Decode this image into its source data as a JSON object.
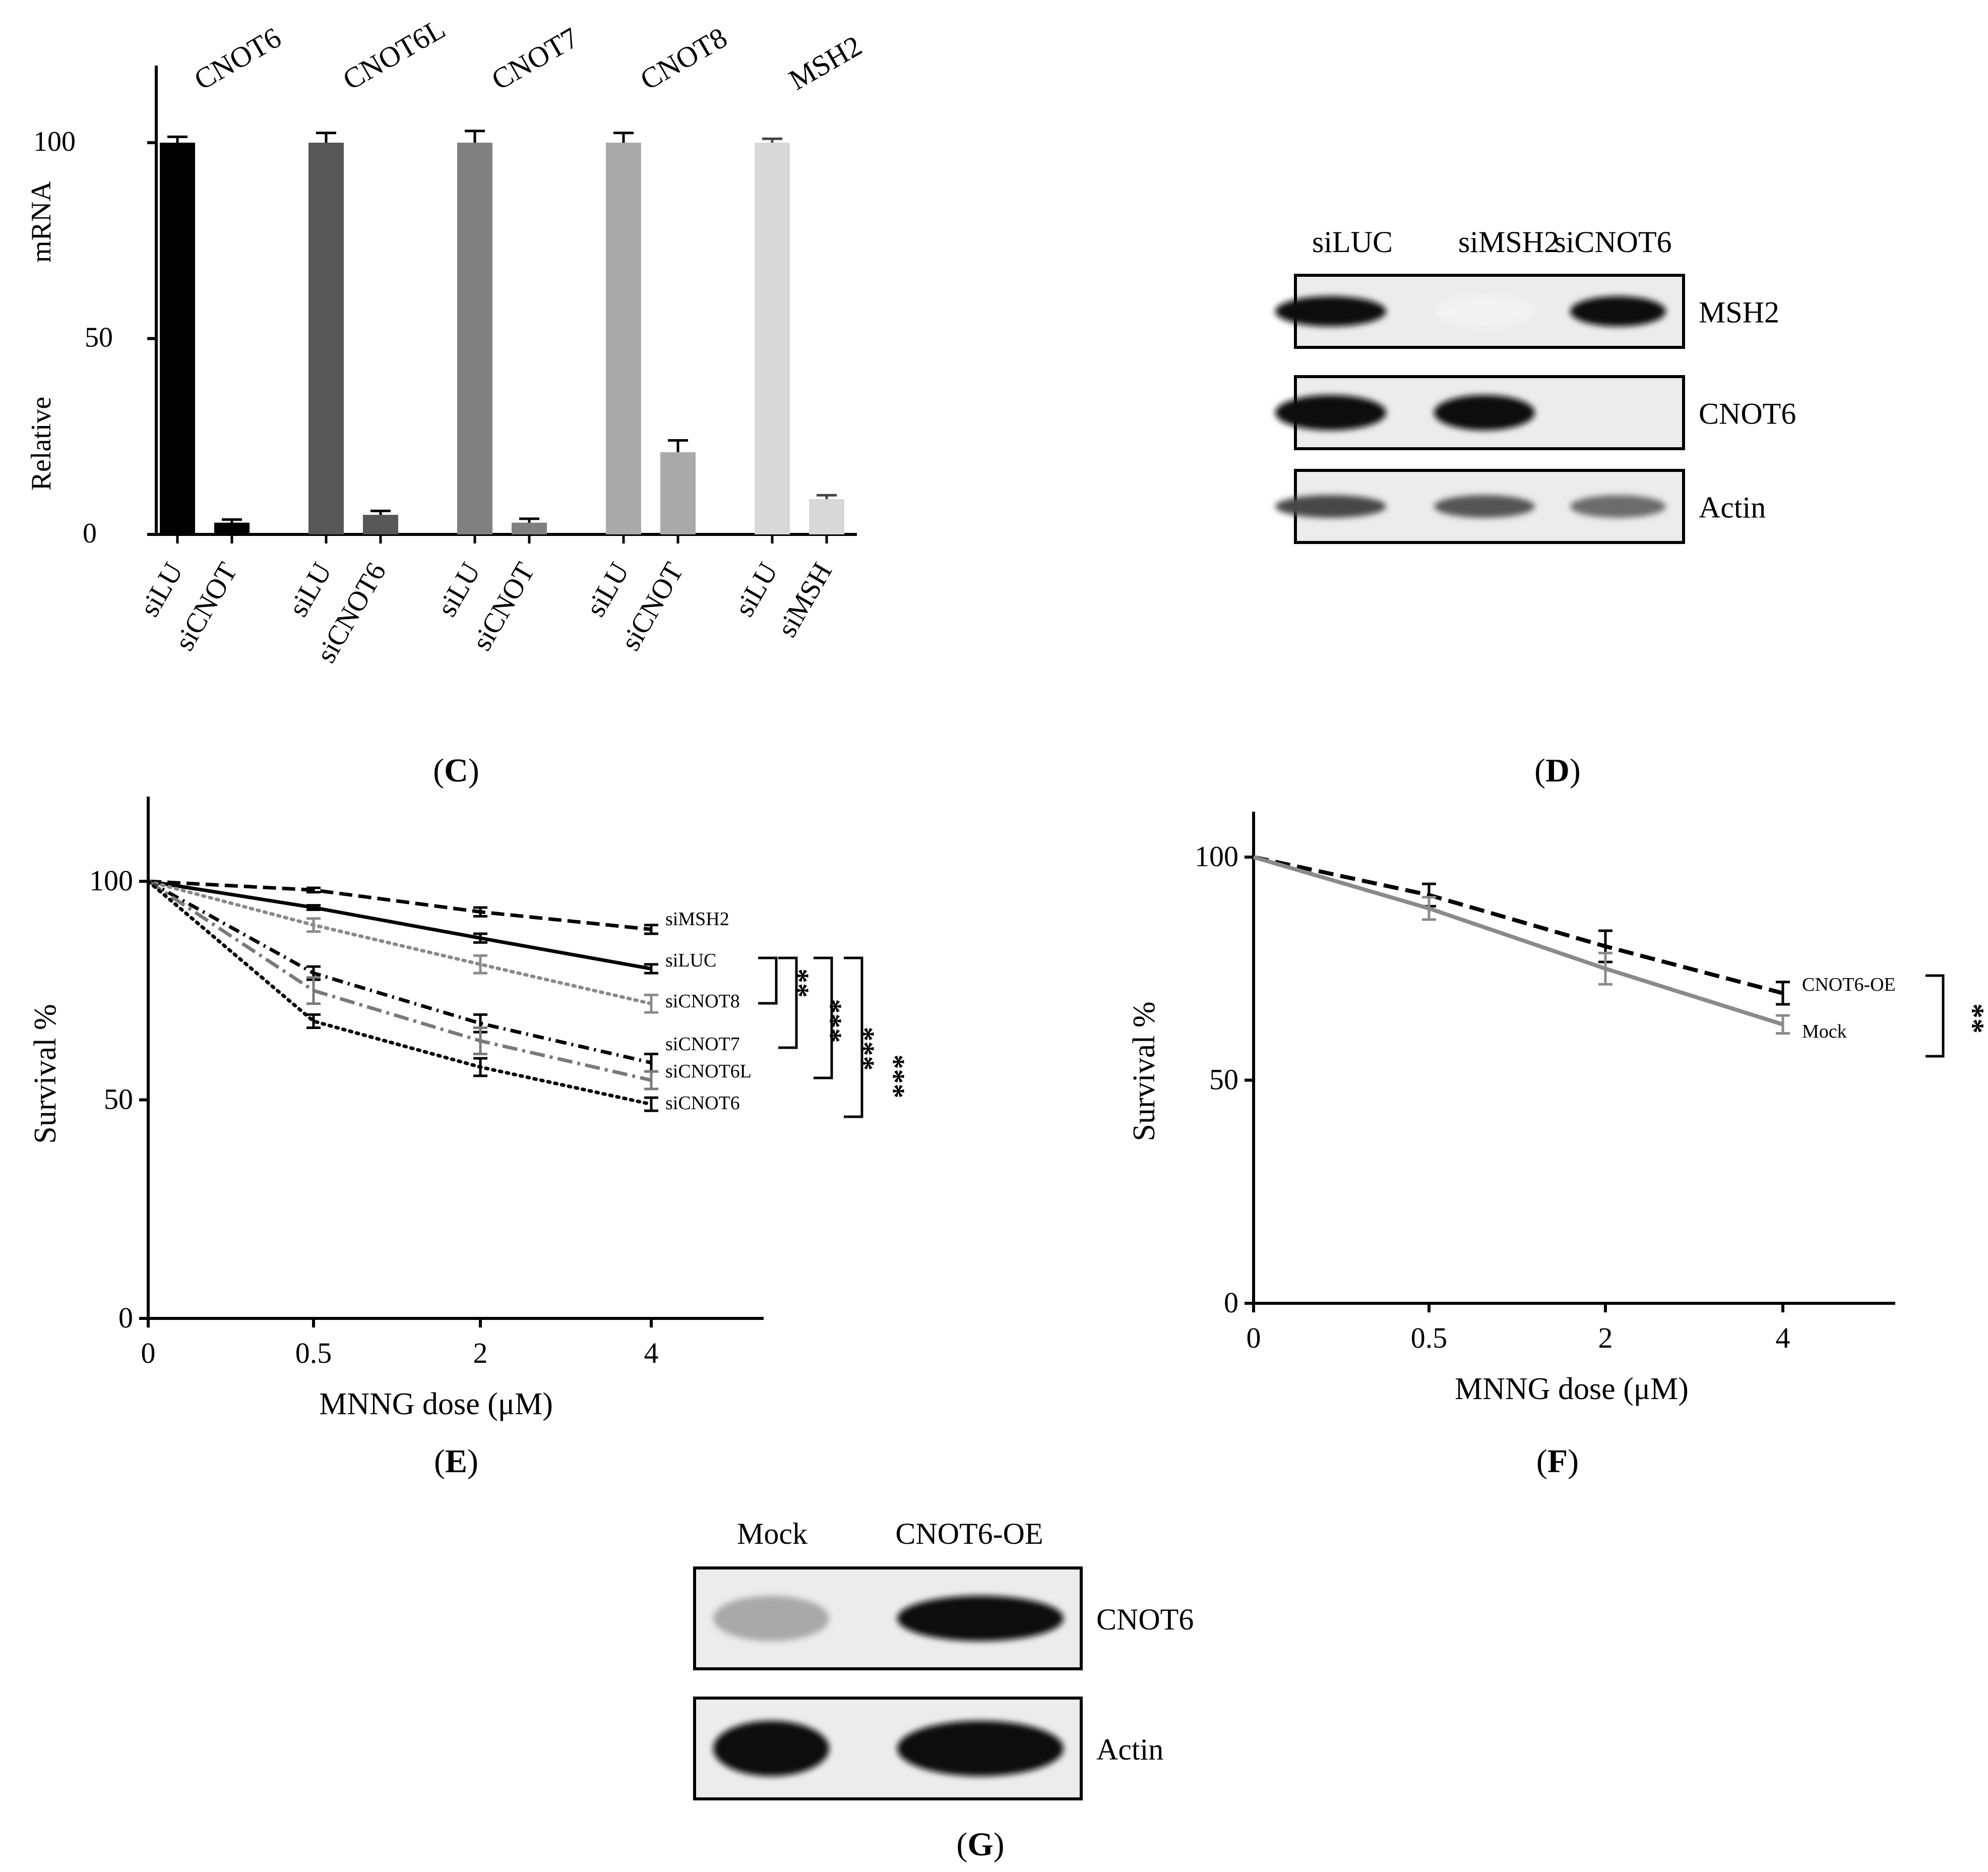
{
  "chart_data": [
    {
      "panel": "C",
      "type": "bar",
      "ylabel": "Relative mRNA",
      "ylim": [
        0,
        115
      ],
      "yticks": [
        "0",
        "50",
        "100"
      ],
      "groups": [
        {
          "gene": "CNOT6",
          "color": "#000000",
          "bars": [
            {
              "label": "siLU",
              "value": 100,
              "err": 1.5
            },
            {
              "label": "siCNOT",
              "value": 3,
              "err": 0.8
            }
          ]
        },
        {
          "gene": "CNOT6L",
          "color": "#575757",
          "bars": [
            {
              "label": "siLU",
              "value": 100,
              "err": 2.5
            },
            {
              "label": "siCNOT6",
              "value": 5,
              "err": 1.0
            }
          ]
        },
        {
          "gene": "CNOT7",
          "color": "#808080",
          "bars": [
            {
              "label": "siLU",
              "value": 100,
              "err": 3.0
            },
            {
              "label": "siCNOT",
              "value": 3,
              "err": 1.0
            }
          ]
        },
        {
          "gene": "CNOT8",
          "color": "#aaaaaa",
          "bars": [
            {
              "label": "siLU",
              "value": 100,
              "err": 2.5
            },
            {
              "label": "siCNOT",
              "value": 21,
              "err": 3.0
            }
          ]
        },
        {
          "gene": "MSH2",
          "color": "#d8d8d8",
          "bars": [
            {
              "label": "siLU",
              "value": 100,
              "err": 1.0
            },
            {
              "label": "siMSH",
              "value": 9,
              "err": 1.0
            }
          ]
        }
      ]
    },
    {
      "panel": "E",
      "type": "line",
      "xlabel": "MNNG dose (μM)",
      "ylabel": "Survival %",
      "x": [
        "0",
        "0.5",
        "2",
        "4"
      ],
      "ylim": [
        0,
        120
      ],
      "yticks": [
        "0",
        "50",
        "100"
      ],
      "series": [
        {
          "name": "siMSH2",
          "values": [
            100,
            98,
            93,
            89
          ],
          "err": [
            0,
            0.5,
            1,
            1
          ],
          "color": "#000000",
          "dash": "26,12",
          "width": 7
        },
        {
          "name": "siLUC",
          "values": [
            100,
            94,
            87,
            80
          ],
          "err": [
            0,
            0.5,
            1,
            1
          ],
          "color": "#000000",
          "dash": "",
          "width": 7
        },
        {
          "name": "siCNOT8",
          "values": [
            100,
            90,
            81,
            72
          ],
          "err": [
            0,
            1.5,
            2,
            2
          ],
          "color": "#8a8a8a",
          "dash": "4,10",
          "width": 7
        },
        {
          "name": "siCNOT7",
          "values": [
            100,
            79,
            67.5,
            58.5
          ],
          "err": [
            0,
            1.5,
            2,
            2
          ],
          "color": "#000000",
          "dash": "22,10,4,10",
          "width": 7
        },
        {
          "name": "siCNOT6L",
          "values": [
            100,
            75,
            63.5,
            54.5
          ],
          "err": [
            0,
            3,
            3,
            2
          ],
          "color": "#7a7a7a",
          "dash": "30,10,6,10",
          "width": 7
        },
        {
          "name": "siCNOT6",
          "values": [
            100,
            68,
            57.5,
            49
          ],
          "err": [
            0,
            1.5,
            2,
            1.5
          ],
          "color": "#000000",
          "dash": "4,10",
          "width": 7
        }
      ],
      "significance": [
        "**",
        "***",
        "***",
        "***"
      ]
    },
    {
      "panel": "F",
      "type": "line",
      "xlabel": "MNNG dose (μM)",
      "ylabel": "Survival %",
      "x": [
        "0",
        "0.5",
        "2",
        "4"
      ],
      "ylim": [
        0,
        110
      ],
      "yticks": [
        "0",
        "50",
        "100"
      ],
      "series": [
        {
          "name": "CNOT6-OE",
          "values": [
            100,
            91.5,
            80,
            69.5
          ],
          "err": [
            0,
            2.5,
            3.5,
            2.5
          ],
          "color": "#000000",
          "dash": "30,14",
          "width": 8
        },
        {
          "name": "Mock",
          "values": [
            100,
            88.5,
            75,
            62.5
          ],
          "err": [
            0,
            2.5,
            3.5,
            2
          ],
          "color": "#8a8a8a",
          "dash": "",
          "width": 8
        }
      ],
      "significance": [
        "**"
      ]
    }
  ],
  "blot_d": {
    "lanes": [
      "siLUC",
      "siMSH2",
      "siCNOT6"
    ],
    "rows": [
      {
        "label": "MSH2",
        "intensity": [
          1.0,
          0.05,
          1.0
        ]
      },
      {
        "label": "CNOT6",
        "intensity": [
          1.0,
          1.0,
          0.0
        ]
      },
      {
        "label": "Actin",
        "intensity": [
          0.75,
          0.7,
          0.6
        ]
      }
    ]
  },
  "blot_g": {
    "lanes": [
      "Mock",
      "CNOT6-OE"
    ],
    "rows": [
      {
        "label": "CNOT6",
        "intensity": [
          0.35,
          1.0
        ]
      },
      {
        "label": "Actin",
        "intensity": [
          1.0,
          1.0
        ]
      }
    ]
  },
  "panel_labels": [
    "C",
    "D",
    "E",
    "F",
    "G"
  ]
}
